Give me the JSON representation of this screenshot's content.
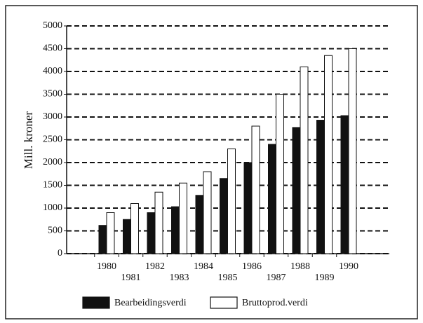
{
  "chart_data": {
    "type": "bar",
    "ylabel": "Mill. kroner",
    "categories": [
      "1980",
      "1981",
      "1982",
      "1983",
      "1984",
      "1985",
      "1986",
      "1987",
      "1988",
      "1989",
      "1990"
    ],
    "series": [
      {
        "name": "Bearbeidingsverdi",
        "color": "#111111",
        "values": [
          620,
          750,
          900,
          1030,
          1280,
          1650,
          2000,
          2400,
          2770,
          2930,
          3030
        ]
      },
      {
        "name": "Bruttoprod.verdi",
        "color": "#ffffff",
        "values": [
          900,
          1100,
          1350,
          1550,
          1800,
          2300,
          2800,
          3500,
          4100,
          4350,
          4500
        ]
      }
    ],
    "ylim": [
      0,
      5000
    ],
    "yticks": [
      0,
      500,
      1000,
      1500,
      2000,
      2500,
      3000,
      3500,
      4000,
      4500,
      5000
    ],
    "grid": true
  }
}
